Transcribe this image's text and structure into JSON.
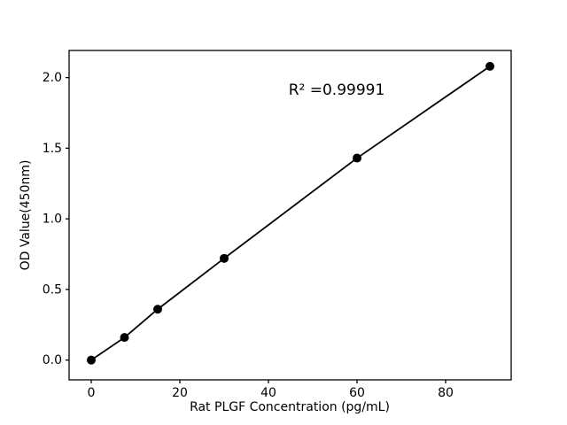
{
  "chart_data": {
    "type": "line",
    "title": "",
    "xlabel": "Rat PLGF Concentration (pg/mL)",
    "ylabel": "OD Value(450nm)",
    "annotation": "R² =0.99991",
    "x": [
      0,
      7.5,
      15,
      30,
      60,
      90
    ],
    "y": [
      0.0,
      0.16,
      0.36,
      0.72,
      1.43,
      2.08
    ],
    "xtick_labels": [
      "0",
      "20",
      "40",
      "60",
      "80"
    ],
    "xtick_values": [
      0,
      20,
      40,
      60,
      80
    ],
    "ytick_labels": [
      "0.0",
      "0.5",
      "1.0",
      "1.5",
      "2.0"
    ],
    "ytick_values": [
      0.0,
      0.5,
      1.0,
      1.5,
      2.0
    ],
    "xlim": [
      -5,
      94.8
    ],
    "ylim": [
      -0.14,
      2.192
    ],
    "grid": false,
    "legend": "none",
    "line_color": "#000000",
    "marker_color": "#000000",
    "background_color": "#ffffff"
  }
}
